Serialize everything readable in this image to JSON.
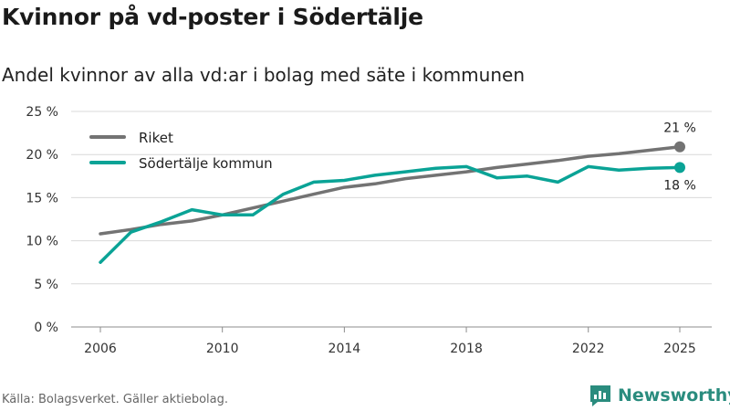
{
  "title": "Kvinnor på vd-poster i Södertälje",
  "subtitle": "Andel kvinnor av alla vd:ar i bolag med säte i kommunen",
  "source": "Källa: Bolagsverket. Gäller aktiebolag.",
  "brand": {
    "name": "Newsworthy",
    "icon": "newsworthy-logo-icon"
  },
  "colors": {
    "riket": "#737373",
    "sodertalje": "#0aa396",
    "grid": "#d9d9d9"
  },
  "chart_data": {
    "type": "line",
    "title": "Kvinnor på vd-poster i Södertälje",
    "xlabel": "",
    "ylabel": "",
    "x": [
      2006,
      2007,
      2008,
      2009,
      2010,
      2011,
      2012,
      2013,
      2014,
      2015,
      2016,
      2017,
      2018,
      2019,
      2020,
      2021,
      2022,
      2023,
      2024,
      2025
    ],
    "xlim": [
      2006,
      2025
    ],
    "ylim": [
      0,
      25
    ],
    "xticks": [
      2006,
      2010,
      2014,
      2018,
      2022,
      2025
    ],
    "yticks": [
      0,
      5,
      10,
      15,
      20,
      25
    ],
    "ytick_labels": [
      "0 %",
      "5 %",
      "10 %",
      "15 %",
      "20 %",
      "25 %"
    ],
    "grid": true,
    "legend_position": "top-left",
    "series": [
      {
        "name": "Riket",
        "color": "#737373",
        "values": [
          10.8,
          11.3,
          11.9,
          12.3,
          13.0,
          13.8,
          14.6,
          15.4,
          16.2,
          16.6,
          17.2,
          17.6,
          18.0,
          18.5,
          18.9,
          19.3,
          19.8,
          20.1,
          20.5,
          20.9
        ],
        "end_label": "21 %"
      },
      {
        "name": "Södertälje kommun",
        "color": "#0aa396",
        "values": [
          7.5,
          11.0,
          12.2,
          13.6,
          13.0,
          13.0,
          15.4,
          16.8,
          17.0,
          17.6,
          18.0,
          18.4,
          18.6,
          17.3,
          17.5,
          16.8,
          18.6,
          18.2,
          18.4,
          18.5
        ],
        "end_label": "18 %"
      }
    ]
  }
}
